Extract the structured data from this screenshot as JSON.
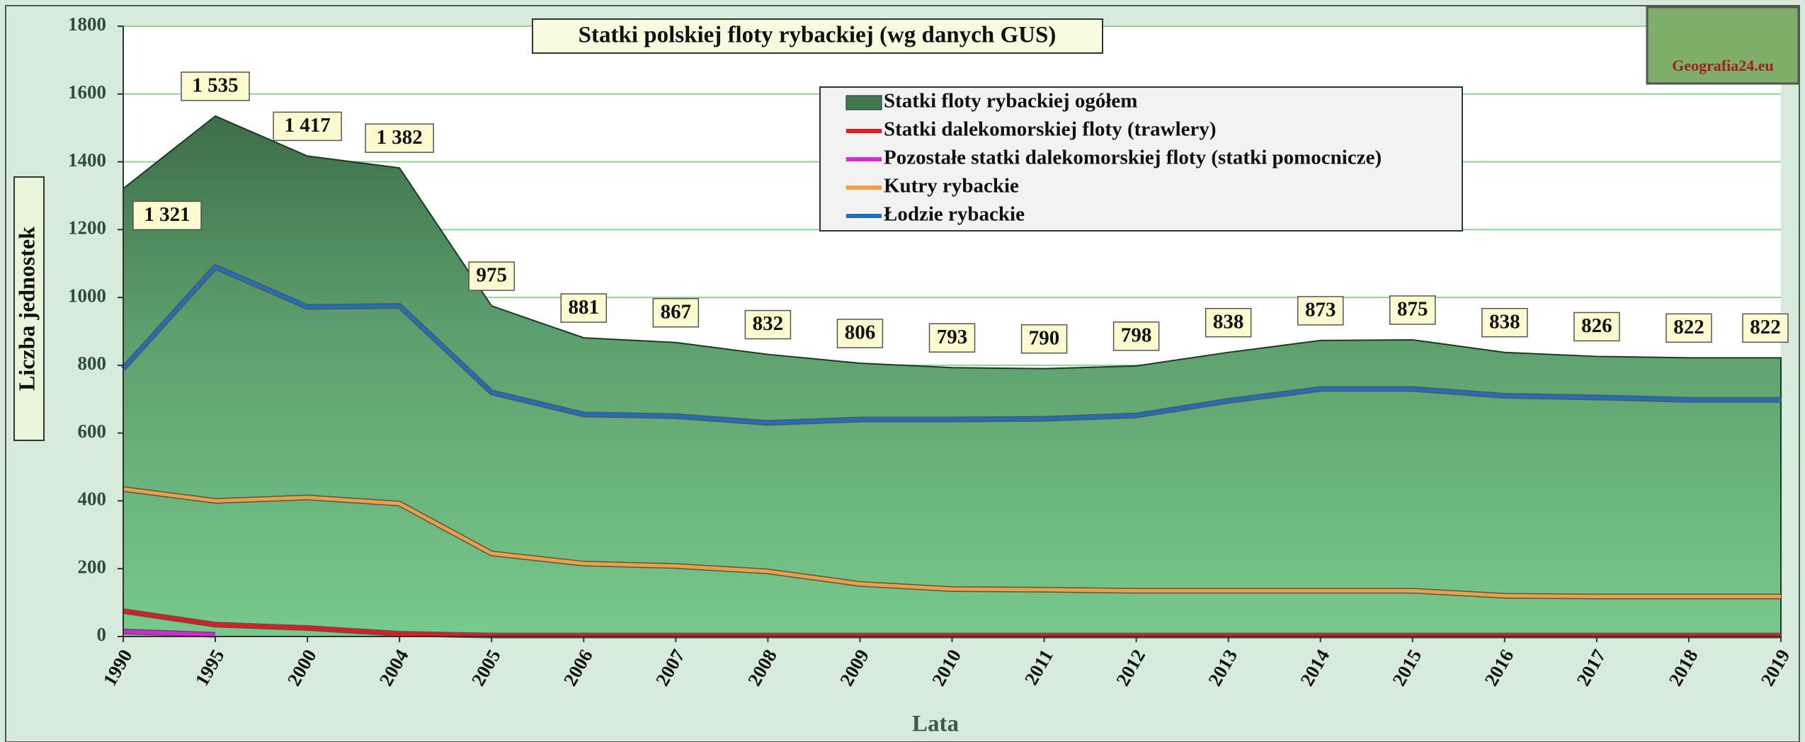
{
  "chart_data": {
    "type": "area",
    "title": "Statki polskiej floty rybackiej (wg danych GUS)",
    "y_label": "Liczba jednostek",
    "x_label": "Lata",
    "logo_text": "Geografia24.eu",
    "categories": [
      "1990",
      "1995",
      "2000",
      "2004",
      "2005",
      "2006",
      "2007",
      "2008",
      "2009",
      "2010",
      "2011",
      "2012",
      "2013",
      "2014",
      "2015",
      "2016",
      "2017",
      "2018",
      "2019"
    ],
    "series": [
      {
        "name": "Statki floty rybackiej ogółem",
        "type": "area",
        "color": "#3f7a52",
        "values": [
          1321,
          1535,
          1417,
          1382,
          975,
          881,
          867,
          832,
          806,
          793,
          790,
          798,
          838,
          873,
          875,
          838,
          826,
          822,
          822
        ],
        "value_labels": [
          "1 321",
          "1 535",
          "1 417",
          "1 382",
          "975",
          "881",
          "867",
          "832",
          "806",
          "793",
          "790",
          "798",
          "838",
          "873",
          "875",
          "838",
          "826",
          "822",
          "822"
        ]
      },
      {
        "name": "Statki dalekomorskiej floty (trawlery)",
        "type": "line",
        "color": "#e8191e",
        "values": [
          75,
          35,
          25,
          8,
          3,
          3,
          3,
          3,
          3,
          3,
          3,
          3,
          3,
          3,
          3,
          3,
          3,
          3,
          3
        ]
      },
      {
        "name": "Pozostałe statki dalekomorskiej floty (statki pomocnicze)",
        "type": "line",
        "color": "#e020e0",
        "values": [
          15,
          5,
          null,
          null,
          null,
          null,
          null,
          null,
          null,
          null,
          null,
          null,
          null,
          null,
          null,
          null,
          null,
          null,
          null
        ]
      },
      {
        "name": "Kutry rybackie",
        "type": "line",
        "color": "#f0a040",
        "values": [
          435,
          400,
          410,
          392,
          245,
          215,
          208,
          192,
          155,
          140,
          138,
          135,
          135,
          135,
          135,
          120,
          118,
          118,
          118
        ]
      },
      {
        "name": "Łodzie rybackie",
        "type": "line",
        "color": "#1f6fc0",
        "values": [
          790,
          1090,
          972,
          975,
          720,
          655,
          650,
          630,
          640,
          640,
          642,
          652,
          695,
          730,
          730,
          710,
          705,
          698,
          698
        ]
      }
    ],
    "ylim": [
      0,
      1800
    ],
    "yticks": [
      0,
      200,
      400,
      600,
      800,
      1000,
      1200,
      1400,
      1600,
      1800
    ],
    "grid": true
  }
}
